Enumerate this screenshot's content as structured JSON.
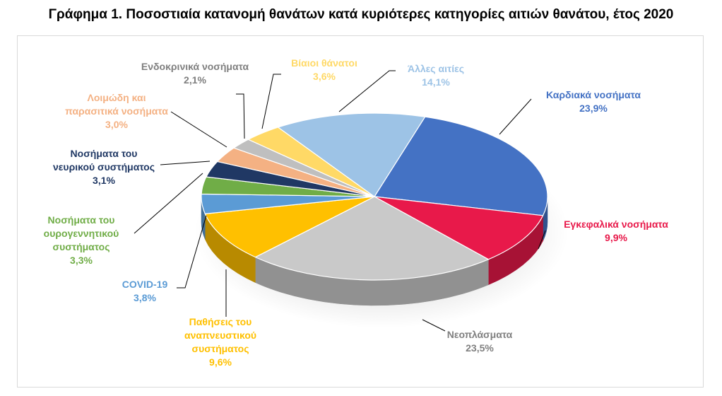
{
  "title": "Γράφημα 1. Ποσοστιαία κατανομή θανάτων κατά κυριότερες κατηγορίες αιτιών θανάτου, έτος 2020",
  "chart_data": {
    "type": "pie",
    "title": "Γράφημα 1. Ποσοστιαία κατανομή θανάτων κατά κυριότερες κατηγορίες αιτιών θανάτου, έτος 2020",
    "value_format": "percent, one decimal, comma separator",
    "slices": [
      {
        "label_lines": [
          "Καρδιακά νοσήματα"
        ],
        "value": 23.9,
        "value_label": "23,9%",
        "color": "#4472C4"
      },
      {
        "label_lines": [
          "Εγκεφαλικά νοσήματα"
        ],
        "value": 9.9,
        "value_label": "9,9%",
        "color": "#E8194A"
      },
      {
        "label_lines": [
          "Νεοπλάσματα"
        ],
        "value": 23.5,
        "value_label": "23,5%",
        "color": "#C9C9C9"
      },
      {
        "label_lines": [
          "Παθήσεις του",
          "αναπνευστικού",
          "συστήματος"
        ],
        "value": 9.6,
        "value_label": "9,6%",
        "color": "#FFC000"
      },
      {
        "label_lines": [
          "COVID-19"
        ],
        "value": 3.8,
        "value_label": "3,8%",
        "color": "#5B9BD5"
      },
      {
        "label_lines": [
          "Νοσήματα του",
          "ουρογεννητικού",
          "συστήματος"
        ],
        "value": 3.3,
        "value_label": "3,3%",
        "color": "#70AD47"
      },
      {
        "label_lines": [
          "Νοσήματα του",
          "νευρικού συστήματος"
        ],
        "value": 3.1,
        "value_label": "3,1%",
        "color": "#203864"
      },
      {
        "label_lines": [
          "Λοιμώδη και",
          "παρασιτικά νοσήματα"
        ],
        "value": 3.0,
        "value_label": "3,0%",
        "color": "#F4B183"
      },
      {
        "label_lines": [
          "Ενδοκρινικά νοσήματα"
        ],
        "value": 2.1,
        "value_label": "2,1%",
        "color": "#BFBFBF"
      },
      {
        "label_lines": [
          "Βίαιοι θάνατοι"
        ],
        "value": 3.6,
        "value_label": "3,6%",
        "color": "#FFD966"
      },
      {
        "label_lines": [
          "Άλλες αιτίες"
        ],
        "value": 14.1,
        "value_label": "14,1%",
        "color": "#9DC3E6"
      }
    ],
    "label_colors": [
      "#4472C4",
      "#E8194A",
      "#7F7F7F",
      "#FFC000",
      "#5B9BD5",
      "#70AD47",
      "#203864",
      "#F4B183",
      "#7F7F7F",
      "#FFD966",
      "#9DC3E6"
    ],
    "legend": "none (leader-line labels)"
  }
}
